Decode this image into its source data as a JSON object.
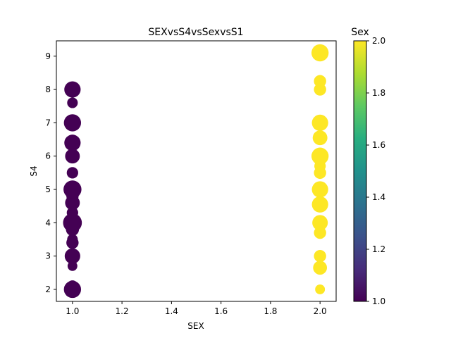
{
  "chart_data": {
    "type": "scatter",
    "title": "SEXvsS4vsSexvsS1",
    "xlabel": "SEX",
    "ylabel": "S4",
    "xlim": [
      0.935,
      2.065
    ],
    "ylim": [
      1.64,
      9.46
    ],
    "grid": false,
    "x_ticks": [
      "1.0",
      "1.2",
      "1.4",
      "1.6",
      "1.8",
      "2.0"
    ],
    "y_ticks": [
      "2",
      "3",
      "4",
      "5",
      "6",
      "7",
      "8",
      "9"
    ],
    "colorbar": {
      "title": "Sex",
      "colormap": "viridis",
      "range": [
        1.0,
        2.0
      ],
      "ticks": [
        "1.0",
        "1.2",
        "1.4",
        "1.6",
        "1.8",
        "2.0"
      ]
    },
    "points": [
      {
        "x": 1,
        "y": 2.0,
        "color_value": 1,
        "s1": 2.1
      },
      {
        "x": 1,
        "y": 2.1,
        "color_value": 1,
        "s1": 1.4
      },
      {
        "x": 1,
        "y": 2.7,
        "color_value": 1,
        "s1": 1.2
      },
      {
        "x": 1,
        "y": 3.0,
        "color_value": 1,
        "s1": 1.9
      },
      {
        "x": 1,
        "y": 3.4,
        "color_value": 1,
        "s1": 1.5
      },
      {
        "x": 1,
        "y": 3.5,
        "color_value": 1,
        "s1": 1.3
      },
      {
        "x": 1,
        "y": 3.8,
        "color_value": 1,
        "s1": 1.6
      },
      {
        "x": 1,
        "y": 4.0,
        "color_value": 1,
        "s1": 2.3
      },
      {
        "x": 1,
        "y": 4.3,
        "color_value": 1,
        "s1": 1.4
      },
      {
        "x": 1,
        "y": 4.6,
        "color_value": 1,
        "s1": 1.8
      },
      {
        "x": 1,
        "y": 4.8,
        "color_value": 1,
        "s1": 1.5
      },
      {
        "x": 1,
        "y": 5.0,
        "color_value": 1,
        "s1": 2.2
      },
      {
        "x": 1,
        "y": 5.5,
        "color_value": 1,
        "s1": 1.4
      },
      {
        "x": 1,
        "y": 6.0,
        "color_value": 1,
        "s1": 1.8
      },
      {
        "x": 1,
        "y": 6.4,
        "color_value": 1,
        "s1": 2.0
      },
      {
        "x": 1,
        "y": 7.0,
        "color_value": 1,
        "s1": 2.1
      },
      {
        "x": 1,
        "y": 7.6,
        "color_value": 1,
        "s1": 1.3
      },
      {
        "x": 1,
        "y": 8.0,
        "color_value": 1,
        "s1": 2.0
      },
      {
        "x": 2,
        "y": 2.0,
        "color_value": 2,
        "s1": 1.2
      },
      {
        "x": 2,
        "y": 2.65,
        "color_value": 2,
        "s1": 1.7
      },
      {
        "x": 2,
        "y": 3.0,
        "color_value": 2,
        "s1": 1.5
      },
      {
        "x": 2,
        "y": 3.7,
        "color_value": 2,
        "s1": 1.5
      },
      {
        "x": 2,
        "y": 4.0,
        "color_value": 2,
        "s1": 1.9
      },
      {
        "x": 2,
        "y": 4.55,
        "color_value": 2,
        "s1": 2.0
      },
      {
        "x": 2,
        "y": 5.0,
        "color_value": 2,
        "s1": 2.0
      },
      {
        "x": 2,
        "y": 5.5,
        "color_value": 2,
        "s1": 1.5
      },
      {
        "x": 2,
        "y": 5.7,
        "color_value": 2,
        "s1": 1.4
      },
      {
        "x": 2,
        "y": 6.0,
        "color_value": 2,
        "s1": 2.1
      },
      {
        "x": 2,
        "y": 6.55,
        "color_value": 2,
        "s1": 1.8
      },
      {
        "x": 2,
        "y": 7.0,
        "color_value": 2,
        "s1": 2.0
      },
      {
        "x": 2,
        "y": 8.0,
        "color_value": 2,
        "s1": 1.5
      },
      {
        "x": 2,
        "y": 8.25,
        "color_value": 2,
        "s1": 1.5
      },
      {
        "x": 2,
        "y": 9.1,
        "color_value": 2,
        "s1": 2.1
      }
    ]
  }
}
